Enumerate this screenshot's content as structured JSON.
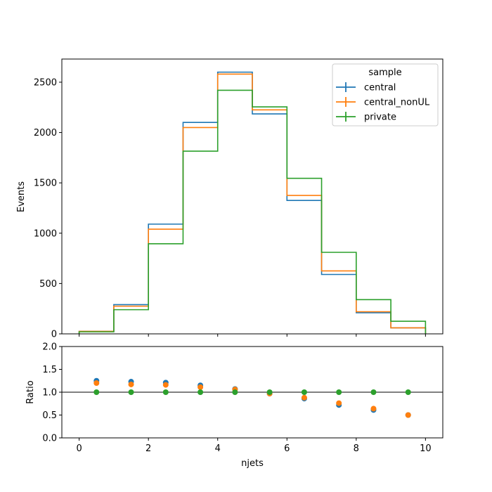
{
  "chart_data": [
    {
      "type": "line",
      "subtype": "step-histogram",
      "ylabel": "Events",
      "xlim": [
        -0.5,
        10.5
      ],
      "ylim": [
        0,
        2730
      ],
      "bin_edges": [
        0,
        1,
        2,
        3,
        4,
        5,
        6,
        7,
        8,
        9,
        10
      ],
      "yticks": [
        0,
        500,
        1000,
        1500,
        2000,
        2500
      ],
      "legend": {
        "title": "sample",
        "placement": "top-right"
      },
      "series": [
        {
          "name": "central",
          "color": "#1f77b4",
          "values": [
            25,
            290,
            1090,
            2100,
            2600,
            2185,
            1325,
            590,
            210,
            60
          ]
        },
        {
          "name": "central_nonUL",
          "color": "#ff7f0e",
          "values": [
            25,
            275,
            1040,
            2050,
            2580,
            2225,
            1375,
            625,
            220,
            60
          ]
        },
        {
          "name": "private",
          "color": "#2ca02c",
          "values": [
            20,
            240,
            895,
            1815,
            2420,
            2255,
            1545,
            810,
            340,
            125
          ]
        }
      ]
    },
    {
      "type": "scatter",
      "xlabel": "njets",
      "ylabel": "Ratio",
      "xlim": [
        -0.5,
        10.5
      ],
      "ylim": [
        0,
        2.0
      ],
      "xticks": [
        0,
        2,
        4,
        6,
        8,
        10
      ],
      "yticks": [
        "0.0",
        "0.5",
        "1.0",
        "1.5",
        "2.0"
      ],
      "reference_line": 1.0,
      "x": [
        0.5,
        1.5,
        2.5,
        3.5,
        4.5,
        5.5,
        6.5,
        7.5,
        8.5,
        9.5
      ],
      "series": [
        {
          "name": "central",
          "color": "#1f77b4",
          "values": [
            1.25,
            1.23,
            1.21,
            1.15,
            1.07,
            0.97,
            0.86,
            0.72,
            0.61,
            0.5
          ]
        },
        {
          "name": "central_nonUL",
          "color": "#ff7f0e",
          "values": [
            1.2,
            1.17,
            1.16,
            1.11,
            1.06,
            0.97,
            0.88,
            0.76,
            0.64,
            0.5
          ]
        },
        {
          "name": "private",
          "color": "#2ca02c",
          "values": [
            1.0,
            1.0,
            1.0,
            1.0,
            1.0,
            1.0,
            1.0,
            1.0,
            1.0,
            1.0
          ]
        }
      ]
    }
  ]
}
